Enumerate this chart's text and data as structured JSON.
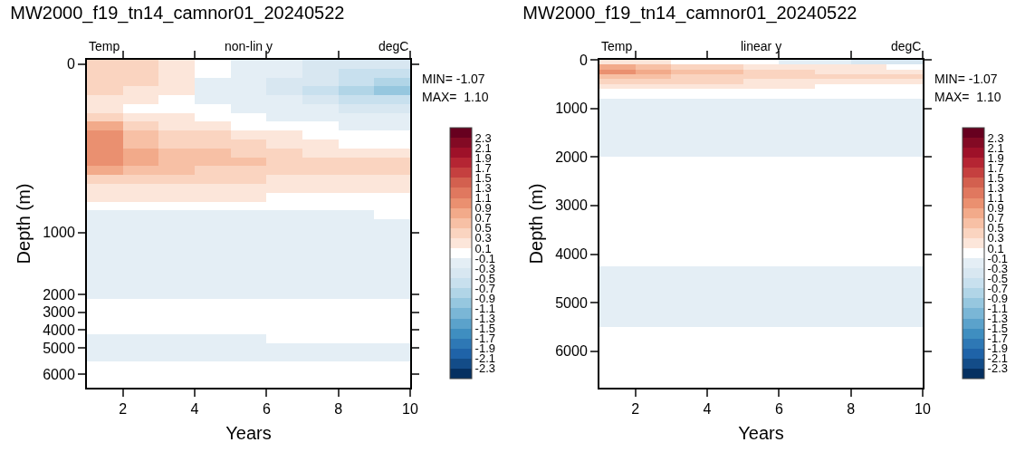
{
  "chart_data": [
    {
      "type": "heatmap",
      "title": "MW2000_f19_tn14_camnor01_20240522",
      "xlabel": "Years",
      "ylabel": "Depth (m)",
      "annotations": [
        "Temp",
        "non-lin y",
        "degC",
        "MIN= -1.07",
        "MAX=  1.10"
      ],
      "x": [
        1.5,
        2.5,
        3.5,
        4.5,
        5.5,
        6.5,
        7.5,
        8.5,
        9.5
      ],
      "xlim": [
        1,
        10
      ],
      "xticks": [
        2,
        4,
        6,
        8,
        10
      ],
      "y_categories": [
        "0",
        null,
        null,
        null,
        null,
        null,
        null,
        null,
        null,
        null,
        null,
        null,
        null,
        null,
        null,
        null,
        null,
        null,
        null,
        "1000",
        null,
        null,
        null,
        null,
        null,
        null,
        "2000",
        null,
        "3000",
        null,
        "4000",
        null,
        "5000",
        null,
        null,
        "6000",
        null
      ],
      "cells": [
        [
          0.4,
          0.4,
          0.2,
          0,
          -0.2,
          -0.2,
          -0.4,
          -0.4,
          -0.4
        ],
        [
          0.4,
          0.4,
          0.2,
          0,
          -0.2,
          -0.2,
          -0.4,
          -0.6,
          -0.6
        ],
        [
          0.4,
          0.4,
          0.2,
          -0.2,
          -0.2,
          -0.4,
          -0.4,
          -0.6,
          -0.8
        ],
        [
          0.4,
          0.2,
          0.2,
          -0.2,
          -0.2,
          -0.4,
          -0.6,
          -0.8,
          -1.0
        ],
        [
          0.2,
          0.2,
          0,
          -0.2,
          -0.2,
          -0.2,
          -0.4,
          -0.6,
          -0.6
        ],
        [
          0.2,
          0,
          0,
          0,
          -0.2,
          -0.2,
          -0.2,
          -0.4,
          -0.4
        ],
        [
          0.4,
          0.2,
          0.2,
          0,
          0,
          -0.2,
          -0.2,
          -0.2,
          -0.2
        ],
        [
          0.8,
          0.4,
          0.2,
          0.2,
          0,
          0,
          0,
          -0.2,
          -0.2
        ],
        [
          1.0,
          0.6,
          0.4,
          0.4,
          0.2,
          0.2,
          0,
          0,
          0
        ],
        [
          1.0,
          0.6,
          0.4,
          0.4,
          0.4,
          0.2,
          0.2,
          0,
          0
        ],
        [
          1.0,
          0.8,
          0.6,
          0.6,
          0.4,
          0.4,
          0.2,
          0.2,
          0.2
        ],
        [
          1.0,
          0.8,
          0.6,
          0.6,
          0.6,
          0.4,
          0.4,
          0.4,
          0.4
        ],
        [
          0.8,
          0.6,
          0.6,
          0.4,
          0.4,
          0.4,
          0.4,
          0.4,
          0.4
        ],
        [
          0.4,
          0.4,
          0.4,
          0.4,
          0.4,
          0.2,
          0.2,
          0.2,
          0.2
        ],
        [
          0.2,
          0.2,
          0.2,
          0.2,
          0.2,
          0.2,
          0.2,
          0.2,
          0.2
        ],
        [
          0.2,
          0.2,
          0.2,
          0.2,
          0.2,
          0,
          0,
          0,
          0
        ],
        [
          0,
          0,
          0,
          0,
          0,
          0,
          0,
          0,
          0
        ],
        [
          -0.2,
          -0.2,
          -0.2,
          -0.2,
          -0.2,
          -0.2,
          -0.2,
          -0.2,
          0
        ],
        [
          -0.2,
          -0.2,
          -0.2,
          -0.2,
          -0.2,
          -0.2,
          -0.2,
          -0.2,
          -0.2
        ],
        [
          -0.2,
          -0.2,
          -0.2,
          -0.2,
          -0.2,
          -0.2,
          -0.2,
          -0.2,
          -0.2
        ],
        [
          -0.2,
          -0.2,
          -0.2,
          -0.2,
          -0.2,
          -0.2,
          -0.2,
          -0.2,
          -0.2
        ],
        [
          -0.2,
          -0.2,
          -0.2,
          -0.2,
          -0.2,
          -0.2,
          -0.2,
          -0.2,
          -0.2
        ],
        [
          -0.2,
          -0.2,
          -0.2,
          -0.2,
          -0.2,
          -0.2,
          -0.2,
          -0.2,
          -0.2
        ],
        [
          -0.2,
          -0.2,
          -0.2,
          -0.2,
          -0.2,
          -0.2,
          -0.2,
          -0.2,
          -0.2
        ],
        [
          -0.2,
          -0.2,
          -0.2,
          -0.2,
          -0.2,
          -0.2,
          -0.2,
          -0.2,
          -0.2
        ],
        [
          -0.2,
          -0.2,
          -0.2,
          -0.2,
          -0.2,
          -0.2,
          -0.2,
          -0.2,
          -0.2
        ],
        [
          -0.2,
          -0.2,
          -0.2,
          -0.2,
          -0.2,
          -0.2,
          -0.2,
          -0.2,
          -0.2
        ],
        [
          0,
          0,
          0,
          0,
          0,
          0,
          0,
          0,
          0
        ],
        [
          0,
          0,
          0,
          0,
          0,
          0,
          0,
          0,
          0
        ],
        [
          0,
          0,
          0,
          0,
          0,
          0,
          0,
          0,
          0
        ],
        [
          0,
          0,
          0,
          0,
          0,
          0,
          0,
          0,
          0
        ],
        [
          -0.2,
          -0.2,
          -0.2,
          -0.2,
          -0.2,
          0,
          0,
          0,
          0
        ],
        [
          -0.2,
          -0.2,
          -0.2,
          -0.2,
          -0.2,
          -0.2,
          -0.2,
          -0.2,
          -0.2
        ],
        [
          -0.2,
          -0.2,
          -0.2,
          -0.2,
          -0.2,
          -0.2,
          -0.2,
          -0.2,
          -0.2
        ],
        [
          0,
          0,
          0,
          0,
          0,
          0,
          0,
          0,
          0
        ],
        [
          0,
          0,
          0,
          0,
          0,
          0,
          0,
          0,
          0
        ],
        [
          0,
          0,
          0,
          0,
          0,
          0,
          0,
          0,
          0
        ]
      ],
      "clim": [
        -2.5,
        2.5
      ],
      "cticks": [
        -2.3,
        -2.1,
        -1.9,
        -1.7,
        -1.5,
        -1.3,
        -1.1,
        -0.9,
        -0.7,
        -0.5,
        -0.3,
        -0.1,
        0.1,
        0.3,
        0.5,
        0.7,
        0.9,
        1.1,
        1.3,
        1.5,
        1.7,
        1.9,
        2.1,
        2.3
      ],
      "colors": [
        "#053061",
        "#134c88",
        "#1f63a8",
        "#2e78b5",
        "#3f8ec0",
        "#5ba2cb",
        "#7ab6d6",
        "#96c7df",
        "#b1d5e7",
        "#c8e0ee",
        "#d8e7f1",
        "#e4eef5",
        "#ffffff",
        "#fce6da",
        "#fad4c0",
        "#f7c0a5",
        "#f2aa8a",
        "#ea9070",
        "#e0785f",
        "#d3604f",
        "#c5403f",
        "#b52533",
        "#9e1129",
        "#830a24",
        "#67001f"
      ]
    },
    {
      "type": "heatmap",
      "title": "MW2000_f19_tn14_camnor01_20240522",
      "xlabel": "Years",
      "ylabel": "Depth (m)",
      "annotations": [
        "Temp",
        "linear y",
        "degC",
        "MIN= -1.07",
        "MAX=  1.10"
      ],
      "x": [
        1.5,
        2.5,
        3.5,
        4.5,
        5.5,
        6.5,
        7.5,
        8.5,
        9.5
      ],
      "xlim": [
        1,
        10
      ],
      "xticks": [
        2,
        4,
        6,
        8,
        10
      ],
      "y": [
        50,
        150,
        250,
        350,
        450,
        550,
        650,
        750,
        850,
        950,
        1125,
        1375,
        1625,
        1875,
        2125,
        2375,
        2625,
        2875,
        3125,
        3375,
        3625,
        3875,
        4125,
        4375,
        4625,
        4875,
        5125,
        5375,
        5625,
        5875,
        6125,
        6375,
        6625
      ],
      "ylim": [
        6750,
        0
      ],
      "yticks": [
        0,
        1000,
        2000,
        3000,
        4000,
        5000,
        6000
      ],
      "cells": [
        [
          0.2,
          0.2,
          0,
          0,
          0,
          -0.2,
          -0.2,
          -0.4,
          -0.4
        ],
        [
          0.8,
          0.6,
          0.4,
          0.4,
          0.2,
          0.2,
          0.2,
          0.2,
          0
        ],
        [
          1.0,
          0.8,
          0.6,
          0.6,
          0.4,
          0.4,
          0.2,
          0.2,
          0.2
        ],
        [
          0.6,
          0.6,
          0.4,
          0.4,
          0.4,
          0.4,
          0.4,
          0.4,
          0.4
        ],
        [
          0.4,
          0.4,
          0.4,
          0.4,
          0.2,
          0.2,
          0.2,
          0.2,
          0.2
        ],
        [
          0.2,
          0.2,
          0.2,
          0.2,
          0.2,
          0.2,
          0,
          0,
          0
        ],
        [
          0,
          0,
          0,
          0,
          0,
          0,
          0,
          0,
          0
        ],
        [
          0,
          0,
          0,
          0,
          0,
          0,
          0,
          0,
          0
        ],
        [
          -0.2,
          -0.2,
          -0.2,
          -0.2,
          -0.2,
          -0.2,
          -0.2,
          -0.2,
          -0.2
        ],
        [
          -0.2,
          -0.2,
          -0.2,
          -0.2,
          -0.2,
          -0.2,
          -0.2,
          -0.2,
          -0.2
        ],
        [
          -0.2,
          -0.2,
          -0.2,
          -0.2,
          -0.2,
          -0.2,
          -0.2,
          -0.2,
          -0.2
        ],
        [
          -0.2,
          -0.2,
          -0.2,
          -0.2,
          -0.2,
          -0.2,
          -0.2,
          -0.2,
          -0.2
        ],
        [
          -0.2,
          -0.2,
          -0.2,
          -0.2,
          -0.2,
          -0.2,
          -0.2,
          -0.2,
          -0.2
        ],
        [
          -0.2,
          -0.2,
          -0.2,
          -0.2,
          -0.2,
          -0.2,
          -0.2,
          -0.2,
          -0.2
        ],
        [
          0,
          0,
          0,
          0,
          0,
          0,
          0,
          0,
          0
        ],
        [
          0,
          0,
          0,
          0,
          0,
          0,
          0,
          0,
          0
        ],
        [
          0,
          0,
          0,
          0,
          0,
          0,
          0,
          0,
          0
        ],
        [
          0,
          0,
          0,
          0,
          0,
          0,
          0,
          0,
          0
        ],
        [
          0,
          0,
          0,
          0,
          0,
          0,
          0,
          0,
          0
        ],
        [
          0,
          0,
          0,
          0,
          0,
          0,
          0,
          0,
          0
        ],
        [
          0,
          0,
          0,
          0,
          0,
          0,
          0,
          0,
          0
        ],
        [
          0,
          0,
          0,
          0,
          0,
          0,
          0,
          0,
          0
        ],
        [
          0,
          0,
          0,
          0,
          0,
          0,
          0,
          0,
          0
        ],
        [
          -0.2,
          -0.2,
          -0.2,
          -0.2,
          -0.2,
          -0.2,
          -0.2,
          -0.2,
          -0.2
        ],
        [
          -0.2,
          -0.2,
          -0.2,
          -0.2,
          -0.2,
          -0.2,
          -0.2,
          -0.2,
          -0.2
        ],
        [
          -0.2,
          -0.2,
          -0.2,
          -0.2,
          -0.2,
          -0.2,
          -0.2,
          -0.2,
          -0.2
        ],
        [
          -0.2,
          -0.2,
          -0.2,
          -0.2,
          -0.2,
          -0.2,
          -0.2,
          -0.2,
          -0.2
        ],
        [
          -0.2,
          -0.2,
          -0.2,
          -0.2,
          -0.2,
          -0.2,
          -0.2,
          -0.2,
          -0.2
        ],
        [
          0,
          0,
          0,
          0,
          0,
          0,
          0,
          0,
          0
        ],
        [
          0,
          0,
          0,
          0,
          0,
          0,
          0,
          0,
          0
        ],
        [
          0,
          0,
          0,
          0,
          0,
          0,
          0,
          0,
          0
        ],
        [
          0,
          0,
          0,
          0,
          0,
          0,
          0,
          0,
          0
        ],
        [
          0,
          0,
          0,
          0,
          0,
          0,
          0,
          0,
          0
        ]
      ],
      "clim": [
        -2.5,
        2.5
      ],
      "cticks": [
        -2.3,
        -2.1,
        -1.9,
        -1.7,
        -1.5,
        -1.3,
        -1.1,
        -0.9,
        -0.7,
        -0.5,
        -0.3,
        -0.1,
        0.1,
        0.3,
        0.5,
        0.7,
        0.9,
        1.1,
        1.3,
        1.5,
        1.7,
        1.9,
        2.1,
        2.3
      ],
      "colors": [
        "#053061",
        "#134c88",
        "#1f63a8",
        "#2e78b5",
        "#3f8ec0",
        "#5ba2cb",
        "#7ab6d6",
        "#96c7df",
        "#b1d5e7",
        "#c8e0ee",
        "#d8e7f1",
        "#e4eef5",
        "#ffffff",
        "#fce6da",
        "#fad4c0",
        "#f7c0a5",
        "#f2aa8a",
        "#ea9070",
        "#e0785f",
        "#d3604f",
        "#c5403f",
        "#b52533",
        "#9e1129",
        "#830a24",
        "#67001f"
      ]
    }
  ]
}
